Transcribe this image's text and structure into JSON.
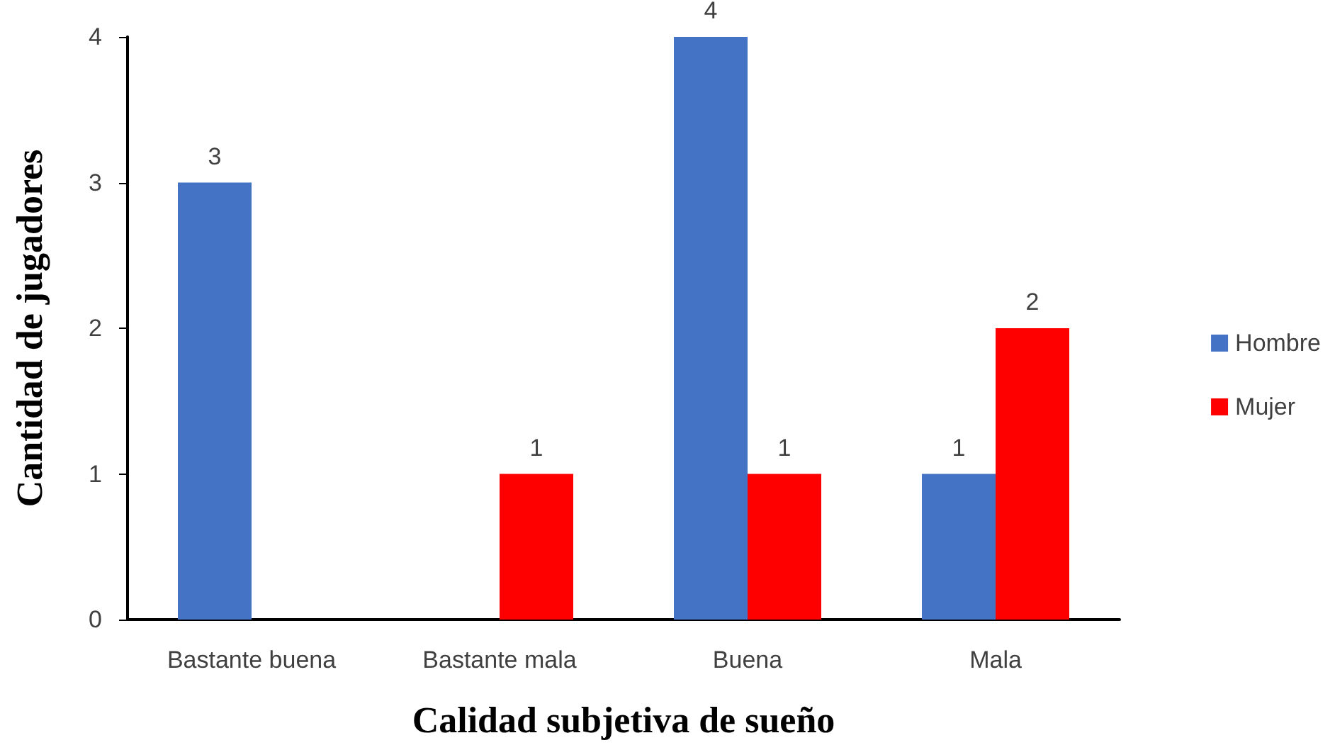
{
  "chart_data": {
    "type": "bar",
    "xlabel": "Calidad subjetiva de sueño",
    "ylabel": "Cantidad de jugadores",
    "categories": [
      "Bastante buena",
      "Bastante mala",
      "Buena",
      "Mala"
    ],
    "series": [
      {
        "name": "Hombre",
        "color": "#4472c4",
        "values": [
          3,
          null,
          4,
          1
        ]
      },
      {
        "name": "Mujer",
        "color": "#ff0000",
        "values": [
          null,
          1,
          1,
          2
        ]
      }
    ],
    "ylim": [
      0,
      4
    ],
    "yticks": [
      0,
      1,
      2,
      3,
      4
    ],
    "grid": false,
    "legend": "right",
    "data_labels": true
  }
}
